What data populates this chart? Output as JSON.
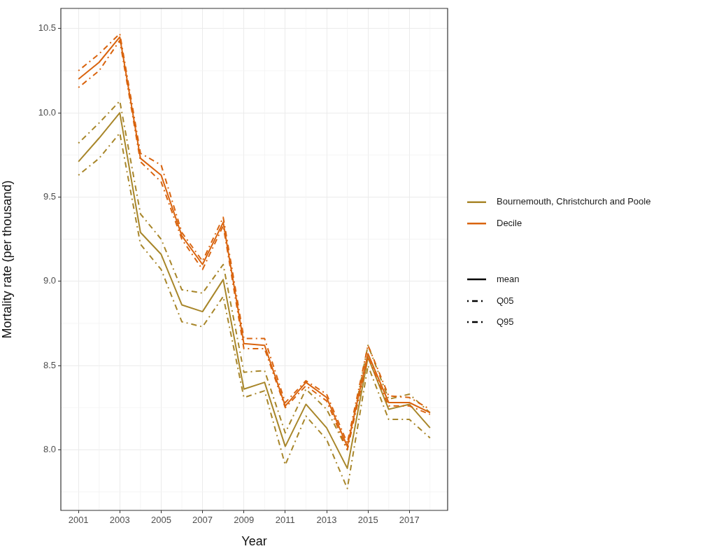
{
  "chart_data": {
    "type": "line",
    "xlabel": "Year",
    "ylabel": "Mortality rate (per thousand)",
    "x": [
      2001,
      2002,
      2003,
      2004,
      2005,
      2006,
      2007,
      2008,
      2009,
      2010,
      2011,
      2012,
      2013,
      2014,
      2015,
      2016,
      2017,
      2018
    ],
    "xlim": [
      2000.15,
      2018.85
    ],
    "xticks": [
      2001,
      2003,
      2005,
      2007,
      2009,
      2011,
      2013,
      2015,
      2017
    ],
    "ylim": [
      7.64,
      10.62
    ],
    "yticks": [
      {
        "value": 8,
        "label": "8.0"
      },
      {
        "value": 8.5,
        "label": "8.5"
      },
      {
        "value": 9,
        "label": "9.0"
      },
      {
        "value": 9.5,
        "label": "9.5"
      },
      {
        "value": 10,
        "label": "10.0"
      },
      {
        "value": 10.5,
        "label": "10.5"
      }
    ],
    "grid": true,
    "legend": "right",
    "marker": "none",
    "annotations": [
      "mean",
      "Q05",
      "Q95"
    ],
    "series": [
      {
        "name": "Bournemouth, Christchurch and Poole",
        "color": "#a8862a",
        "line_style": "solid",
        "values": [
          9.71,
          9.85,
          10.0,
          9.29,
          9.16,
          8.86,
          8.82,
          9.01,
          8.36,
          8.4,
          8.02,
          8.27,
          8.13,
          7.89,
          8.55,
          8.24,
          8.27,
          8.13
        ]
      },
      {
        "color": "#a8862a",
        "line_style": "dashed",
        "values": [
          9.63,
          9.73,
          9.88,
          9.22,
          9.07,
          8.76,
          8.73,
          8.91,
          8.31,
          8.35,
          7.91,
          8.2,
          8.06,
          7.77,
          8.5,
          8.18,
          8.18,
          8.07
        ]
      },
      {
        "color": "#a8862a",
        "line_style": "dashed",
        "values": [
          9.82,
          9.94,
          10.07,
          9.4,
          9.25,
          8.95,
          8.93,
          9.1,
          8.46,
          8.47,
          8.1,
          8.36,
          8.24,
          8.0,
          8.62,
          8.3,
          8.33,
          8.22
        ]
      },
      {
        "name": "Decile",
        "color": "#d9640f",
        "line_style": "solid",
        "values": [
          10.2,
          10.3,
          10.45,
          9.73,
          9.63,
          9.27,
          9.1,
          9.35,
          8.63,
          8.62,
          8.26,
          8.4,
          8.31,
          8.02,
          8.57,
          8.28,
          8.28,
          8.22
        ]
      },
      {
        "color": "#d9640f",
        "line_style": "dashed",
        "values": [
          10.15,
          10.25,
          10.43,
          9.71,
          9.59,
          9.25,
          9.07,
          9.33,
          8.6,
          8.6,
          8.25,
          8.38,
          8.29,
          8.0,
          8.55,
          8.26,
          8.26,
          8.21
        ]
      },
      {
        "color": "#d9640f",
        "line_style": "dashed",
        "values": [
          10.25,
          10.35,
          10.47,
          9.76,
          9.69,
          9.29,
          9.12,
          9.38,
          8.66,
          8.66,
          8.28,
          8.41,
          8.33,
          8.04,
          8.62,
          8.32,
          8.31,
          8.24
        ]
      }
    ]
  }
}
